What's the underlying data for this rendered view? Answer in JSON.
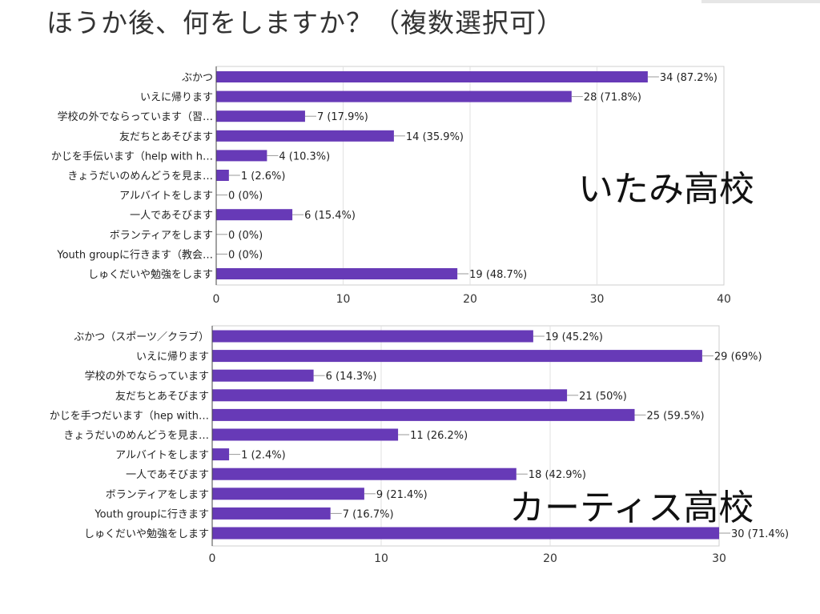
{
  "title": "ほうか後、何をしますか？（複数選択可）",
  "bar_color": "#673ab7",
  "chart_data": [
    {
      "type": "bar",
      "orientation": "horizontal",
      "school": "いたみ高校",
      "categories": [
        "ぶかつ",
        "いえに帰ります",
        "学校の外でならっています（習…",
        "友だちとあそびます",
        "かじを手伝います（help with h…",
        "きょうだいのめんどうを見ま…",
        "アルバイトをします",
        "一人であそびます",
        "ボランティアをします",
        "Youth groupに行きます（教会…",
        "しゅくだいや勉強をします"
      ],
      "values": [
        34,
        28,
        7,
        14,
        4,
        1,
        0,
        6,
        0,
        0,
        19
      ],
      "labels": [
        "34 (87.2%)",
        "28 (71.8%)",
        "7 (17.9%)",
        "14 (35.9%)",
        "4 (10.3%)",
        "1 (2.6%)",
        "0 (0%)",
        "6 (15.4%)",
        "0 (0%)",
        "0 (0%)",
        "19 (48.7%)"
      ],
      "xlim": [
        0,
        40
      ],
      "xticks": [
        0,
        10,
        20,
        30,
        40
      ]
    },
    {
      "type": "bar",
      "orientation": "horizontal",
      "school": "カーティス高校",
      "categories": [
        "ぶかつ（スポーツ／クラブ）",
        "いえに帰ります",
        "学校の外でならっています",
        "友だちとあそびます",
        "かじを手つだいます（hep with…",
        "きょうだいのめんどうを見ま…",
        "アルバイトをします",
        "一人であそびます",
        "ボランティアをします",
        "Youth groupに行きます",
        "しゅくだいや勉強をします"
      ],
      "values": [
        19,
        29,
        6,
        21,
        25,
        11,
        1,
        18,
        9,
        7,
        30
      ],
      "labels": [
        "19 (45.2%)",
        "29 (69%)",
        "6 (14.3%)",
        "21 (50%)",
        "25 (59.5%)",
        "11 (26.2%)",
        "1 (2.4%)",
        "18 (42.9%)",
        "9 (21.4%)",
        "7 (16.7%)",
        "30 (71.4%)"
      ],
      "xlim": [
        0,
        30
      ],
      "xticks": [
        0,
        10,
        20,
        30
      ]
    }
  ]
}
